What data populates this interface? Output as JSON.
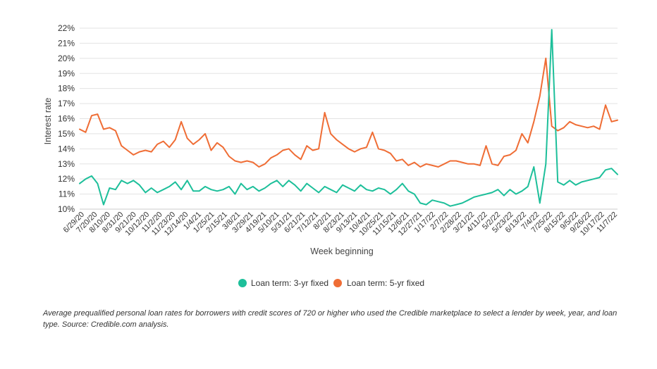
{
  "chart_data": {
    "type": "line",
    "ylabel": "Interest rate",
    "xlabel": "Week beginning",
    "ylim": [
      10,
      22
    ],
    "yticks": [
      "10%",
      "11%",
      "12%",
      "13%",
      "14%",
      "15%",
      "16%",
      "17%",
      "18%",
      "19%",
      "20%",
      "21%",
      "22%"
    ],
    "xticks": [
      "6/29/20",
      "7/20/20",
      "8/10/20",
      "8/31/20",
      "9/21/20",
      "10/12/20",
      "11/2/20",
      "11/23/20",
      "12/14/20",
      "1/4/21",
      "1/25/21",
      "2/15/21",
      "3/8/21",
      "3/29/21",
      "4/19/21",
      "5/10/21",
      "5/31/21",
      "6/21/21",
      "7/12/21",
      "8/2/21",
      "8/23/21",
      "9/13/21",
      "10/4/21",
      "10/25/21",
      "11/15/21",
      "12/6/21",
      "12/27/21",
      "1/17/22",
      "2/7/22",
      "2/28/22",
      "3/21/22",
      "4/11/22",
      "5/2/22",
      "5/23/22",
      "6/13/22",
      "7/4/22",
      "7/25/22",
      "8/15/22",
      "9/5/22",
      "9/26/22",
      "10/17/22",
      "11/7/22"
    ],
    "grid": true,
    "legend_position": "bottom",
    "series": [
      {
        "name": "Loan term: 3-yr fixed",
        "color": "#1dbf9a",
        "values": [
          11.7,
          12.0,
          12.2,
          11.7,
          10.3,
          11.4,
          11.3,
          11.9,
          11.7,
          11.9,
          11.6,
          11.1,
          11.4,
          11.1,
          11.3,
          11.5,
          11.8,
          11.3,
          11.9,
          11.2,
          11.2,
          11.5,
          11.3,
          11.2,
          11.3,
          11.5,
          11.0,
          11.7,
          11.3,
          11.5,
          11.2,
          11.4,
          11.7,
          11.9,
          11.5,
          11.9,
          11.6,
          11.2,
          11.7,
          11.4,
          11.1,
          11.5,
          11.3,
          11.1,
          11.6,
          11.4,
          11.2,
          11.6,
          11.3,
          11.2,
          11.4,
          11.3,
          11.0,
          11.3,
          11.7,
          11.2,
          11.0,
          10.4,
          10.3,
          10.6,
          10.5,
          10.4,
          10.2,
          10.3,
          10.4,
          10.6,
          10.8,
          10.9,
          11.0,
          11.1,
          11.3,
          10.9,
          11.3,
          11.0,
          11.2,
          11.5,
          12.8,
          10.4,
          13.0,
          21.9,
          11.8,
          11.6,
          11.9,
          11.6,
          11.8,
          11.9,
          12.0,
          12.1,
          12.6,
          12.7,
          12.3
        ]
      },
      {
        "name": "Loan term: 5-yr fixed",
        "color": "#ef6d35",
        "values": [
          15.3,
          15.1,
          16.2,
          16.3,
          15.3,
          15.4,
          15.2,
          14.2,
          13.9,
          13.6,
          13.8,
          13.9,
          13.8,
          14.3,
          14.5,
          14.1,
          14.6,
          15.8,
          14.7,
          14.3,
          14.6,
          15.0,
          13.9,
          14.4,
          14.1,
          13.5,
          13.2,
          13.1,
          13.2,
          13.1,
          12.8,
          13.0,
          13.4,
          13.6,
          13.9,
          14.0,
          13.6,
          13.3,
          14.2,
          13.9,
          14.0,
          16.4,
          15.0,
          14.6,
          14.3,
          14.0,
          13.8,
          14.0,
          14.1,
          15.1,
          14.0,
          13.9,
          13.7,
          13.2,
          13.3,
          12.9,
          13.1,
          12.8,
          13.0,
          12.9,
          12.8,
          13.0,
          13.2,
          13.2,
          13.1,
          13.0,
          13.0,
          12.9,
          14.2,
          13.0,
          12.9,
          13.5,
          13.6,
          13.9,
          15.0,
          14.4,
          15.8,
          17.5,
          20.0,
          15.5,
          15.2,
          15.4,
          15.8,
          15.6,
          15.5,
          15.4,
          15.5,
          15.3,
          16.9,
          15.8,
          15.9
        ]
      }
    ]
  },
  "caption": "Average prequalified personal loan rates for borrowers with credit scores of 720 or higher who used the Credible marketplace to select a lender by week, year, and loan type. Source: Credible.com analysis."
}
